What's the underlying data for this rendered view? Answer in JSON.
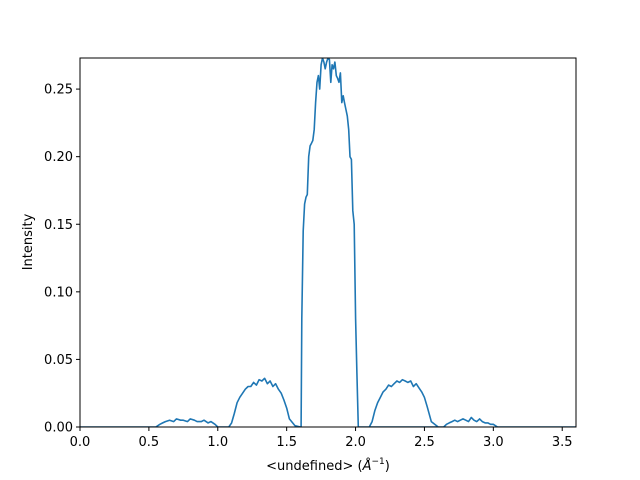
{
  "chart_data": {
    "type": "line",
    "xlabel": "<undefined> (",
    "xlabel_unit_base": "Å",
    "xlabel_unit_exp": "−1",
    "xlabel_close": ")",
    "ylabel": "Intensity",
    "xlim": [
      0.0,
      3.6
    ],
    "ylim": [
      0.0,
      0.273
    ],
    "x_ticks": [
      0.0,
      0.5,
      1.0,
      1.5,
      2.0,
      2.5,
      3.0,
      3.5
    ],
    "x_tick_labels": [
      "0.0",
      "0.5",
      "1.0",
      "1.5",
      "2.0",
      "2.5",
      "3.0",
      "3.5"
    ],
    "y_ticks": [
      0.0,
      0.05,
      0.1,
      0.15,
      0.2,
      0.25
    ],
    "y_tick_labels": [
      "0.00",
      "0.05",
      "0.10",
      "0.15",
      "0.20",
      "0.25"
    ],
    "grid": false,
    "line_color": "#1f77b4",
    "series": [
      {
        "x": [
          0.0,
          0.55,
          0.58,
          0.6,
          0.62,
          0.65,
          0.68,
          0.7,
          0.73,
          0.75,
          0.78,
          0.8,
          0.83,
          0.85,
          0.88,
          0.9,
          0.93,
          0.95,
          0.98,
          1.0,
          1.08,
          1.1,
          1.12,
          1.14,
          1.16,
          1.18,
          1.2,
          1.22,
          1.24,
          1.26,
          1.28,
          1.3,
          1.32,
          1.34,
          1.36,
          1.38,
          1.4,
          1.42,
          1.44,
          1.46,
          1.48,
          1.5,
          1.52,
          1.56,
          1.6,
          1.605,
          1.61,
          1.62,
          1.63,
          1.64,
          1.65,
          1.66,
          1.67,
          1.68,
          1.69,
          1.7,
          1.71,
          1.72,
          1.73,
          1.74,
          1.75,
          1.76,
          1.77,
          1.78,
          1.79,
          1.8,
          1.81,
          1.82,
          1.83,
          1.84,
          1.85,
          1.86,
          1.87,
          1.88,
          1.89,
          1.9,
          1.91,
          1.92,
          1.93,
          1.94,
          1.95,
          1.96,
          1.97,
          1.98,
          1.99,
          2.0,
          2.01,
          2.02,
          2.6,
          2.1,
          2.12,
          2.14,
          2.16,
          2.18,
          2.2,
          2.22,
          2.24,
          2.26,
          2.28,
          2.3,
          2.32,
          2.34,
          2.36,
          2.38,
          2.4,
          2.42,
          2.44,
          2.46,
          2.48,
          2.5,
          2.52,
          2.55,
          2.6,
          2.64,
          2.66,
          2.68,
          2.7,
          2.72,
          2.74,
          2.76,
          2.78,
          2.8,
          2.82,
          2.84,
          2.86,
          2.88,
          2.9,
          2.92,
          2.94,
          2.96,
          2.98,
          3.0,
          3.03,
          3.6
        ],
        "y": [
          0.0,
          0.0,
          0.002,
          0.003,
          0.004,
          0.005,
          0.004,
          0.006,
          0.005,
          0.005,
          0.004,
          0.006,
          0.005,
          0.004,
          0.004,
          0.005,
          0.003,
          0.004,
          0.002,
          0.0,
          0.0,
          0.003,
          0.01,
          0.018,
          0.022,
          0.025,
          0.028,
          0.03,
          0.03,
          0.033,
          0.031,
          0.035,
          0.034,
          0.036,
          0.032,
          0.034,
          0.03,
          0.032,
          0.028,
          0.025,
          0.02,
          0.014,
          0.006,
          0.001,
          0.0,
          0.0,
          0.08,
          0.145,
          0.165,
          0.17,
          0.172,
          0.2,
          0.208,
          0.21,
          0.212,
          0.22,
          0.24,
          0.255,
          0.26,
          0.25,
          0.268,
          0.273,
          0.27,
          0.265,
          0.27,
          0.273,
          0.272,
          0.255,
          0.268,
          0.265,
          0.27,
          0.26,
          0.258,
          0.255,
          0.262,
          0.24,
          0.245,
          0.24,
          0.235,
          0.23,
          0.22,
          0.2,
          0.198,
          0.16,
          0.15,
          0.08,
          0.04,
          0.0,
          0.0,
          0.0,
          0.004,
          0.012,
          0.018,
          0.022,
          0.026,
          0.028,
          0.031,
          0.03,
          0.032,
          0.034,
          0.033,
          0.035,
          0.034,
          0.033,
          0.034,
          0.03,
          0.032,
          0.029,
          0.026,
          0.022,
          0.015,
          0.004,
          0.0,
          0.0,
          0.002,
          0.003,
          0.004,
          0.005,
          0.004,
          0.005,
          0.006,
          0.005,
          0.004,
          0.007,
          0.005,
          0.004,
          0.006,
          0.004,
          0.003,
          0.003,
          0.002,
          0.002,
          0.0,
          0.0
        ]
      }
    ]
  }
}
